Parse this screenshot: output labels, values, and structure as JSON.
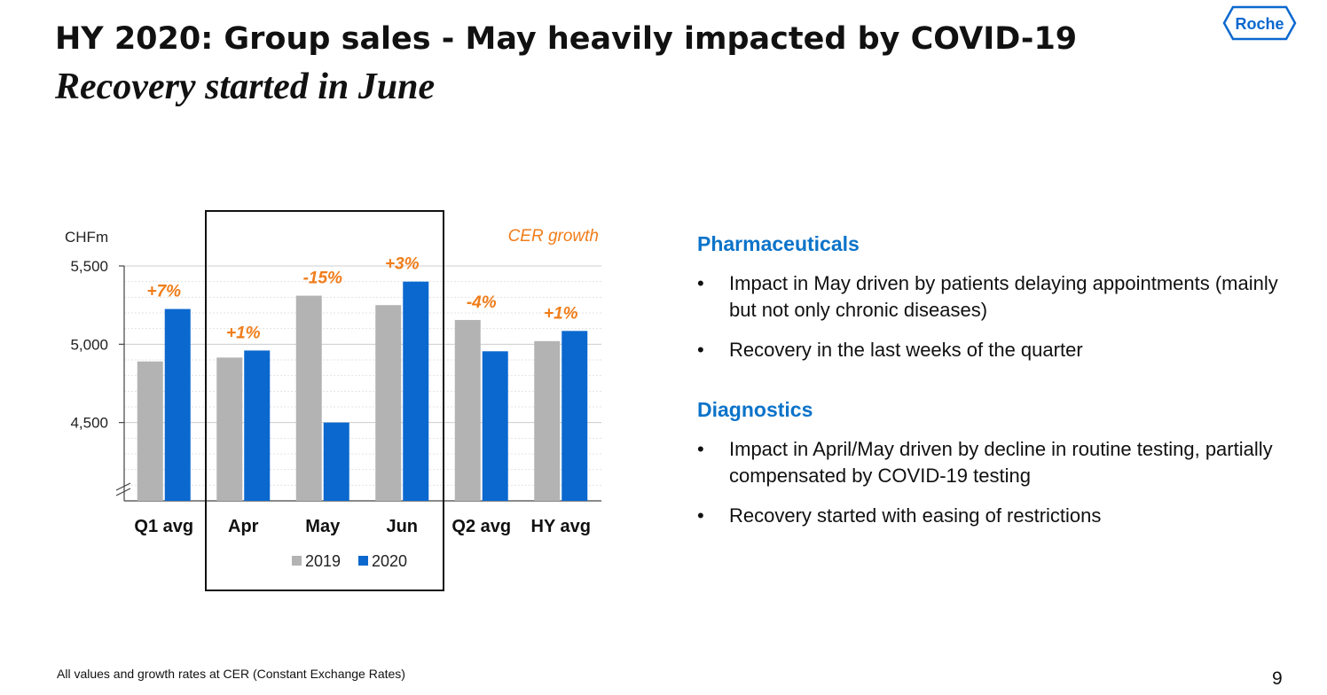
{
  "slide": {
    "title": "HY 2020: Group sales - May heavily impacted by COVID-19",
    "subtitle": "Recovery started in June",
    "logo_text": "Roche",
    "footnote": "All values and growth rates at CER (Constant Exchange Rates)",
    "page_number": "9"
  },
  "right_panel": {
    "sections": [
      {
        "heading": "Pharmaceuticals",
        "bullets": [
          "Impact in May driven by patients delaying appointments (mainly but not only chronic diseases)",
          "Recovery in the last weeks of the quarter"
        ]
      },
      {
        "heading": "Diagnostics",
        "bullets": [
          "Impact in April/May driven by decline in routine testing, partially compensated by COVID-19 testing",
          "Recovery started with easing of restrictions"
        ]
      }
    ],
    "bullet_glyph": "•"
  },
  "colors": {
    "series_2019": "#b3b3b3",
    "series_2020": "#0b68cf",
    "growth_label": "#f07d1a",
    "heading": "#0b73c9"
  },
  "chart_data": {
    "type": "bar",
    "ylabel": "CHFm",
    "annotation_header": "CER growth",
    "categories": [
      "Q1 avg",
      "Apr",
      "May",
      "Jun",
      "Q2 avg",
      "HY avg"
    ],
    "series": [
      {
        "name": "2019",
        "values": [
          4890,
          4915,
          5310,
          5250,
          5155,
          5020
        ]
      },
      {
        "name": "2020",
        "values": [
          5225,
          4960,
          4500,
          5400,
          4955,
          5085
        ]
      }
    ],
    "growth_labels": [
      "+7%",
      "+1%",
      "-15%",
      "+3%",
      "-4%",
      "+1%"
    ],
    "ylim": [
      4000,
      5500
    ],
    "yticks": [
      4500,
      5000,
      5500
    ],
    "ytick_labels": [
      "4,500",
      "5,000",
      "5,500"
    ],
    "axis_break": true,
    "grid": true,
    "legend_position": "bottom",
    "highlighted_categories": [
      "Apr",
      "May",
      "Jun"
    ]
  }
}
